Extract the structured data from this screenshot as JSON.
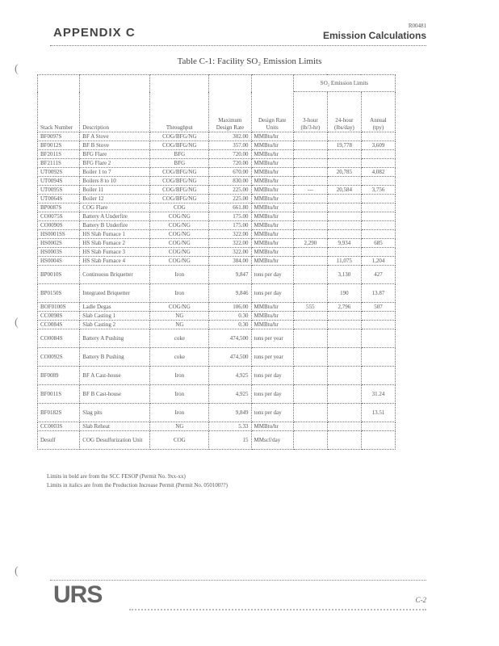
{
  "header": {
    "appendix": "APPENDIX C",
    "doc_id": "R00481",
    "section": "Emission Calculations"
  },
  "title": "Table C-1: Facility SO₂ Emission Limits",
  "table": {
    "headers": {
      "stack": "Stack Number",
      "description": "Description",
      "throughput": "Throughput",
      "max_rate": "Maximum Design Rate",
      "units": "Design Rate Units",
      "limits_group": "SO₂ Emission Limits",
      "h3": "3-hour (lb/3-hr)",
      "h24": "24-hour (lbs/day)",
      "annual": "Annual (tpy)"
    },
    "rows": [
      {
        "stack": "BF0097S",
        "desc": "BF A Stove",
        "fuel": "COG/BFG/NG",
        "rate": "302.00",
        "units": "MMBtu/hr",
        "h3": "",
        "h24": "",
        "annual": ""
      },
      {
        "stack": "BF0012S",
        "desc": "BF B Stove",
        "fuel": "COG/BFG/NG",
        "rate": "357.00",
        "units": "MMBtu/hr",
        "h3": "",
        "h24": "19,778",
        "annual": "3,609"
      },
      {
        "stack": "BF2011S",
        "desc": "BFG Flare",
        "fuel": "BFG",
        "rate": "720.00",
        "units": "MMBtu/hr",
        "h3": "",
        "h24": "",
        "annual": ""
      },
      {
        "stack": "BF2111S",
        "desc": "BFG Flare 2",
        "fuel": "BFG",
        "rate": "720.00",
        "units": "MMBtu/hr",
        "h3": "",
        "h24": "",
        "annual": ""
      },
      {
        "stack": "UT0092S",
        "desc": "Boiler 1 to 7",
        "fuel": "COG/BFG/NG",
        "rate": "670.00",
        "units": "MMBtu/hr",
        "h3": "",
        "h24": "20,785",
        "annual": "4,082"
      },
      {
        "stack": "UT0094S",
        "desc": "Boilers 8 to 10",
        "fuel": "COG/BFG/NG",
        "rate": "830.00",
        "units": "MMBtu/hr",
        "h3": "",
        "h24": "",
        "annual": ""
      },
      {
        "stack": "UT0095S",
        "desc": "Boiler 11",
        "fuel": "COG/BFG/NG",
        "rate": "225.00",
        "units": "MMBtu/hr",
        "h3": "---",
        "h24": "20,584",
        "annual": "3,756"
      },
      {
        "stack": "UT0064S",
        "desc": "Boiler 12",
        "fuel": "COG/BFG/NG",
        "rate": "225.00",
        "units": "MMBtu/hr",
        "h3": "",
        "h24": "",
        "annual": ""
      },
      {
        "stack": "BP0087S",
        "desc": "COG Flare",
        "fuel": "COG",
        "rate": "661.80",
        "units": "MMBtu/hr",
        "h3": "",
        "h24": "",
        "annual": ""
      },
      {
        "stack": "CO0075S",
        "desc": "Battery A Underfire",
        "fuel": "COG/NG",
        "rate": "175.00",
        "units": "MMBtu/hr",
        "h3": "",
        "h24": "",
        "annual": ""
      },
      {
        "stack": "CO0090S",
        "desc": "Battery B Underfire",
        "fuel": "COG/NG",
        "rate": "175.00",
        "units": "MMBtu/hr",
        "h3": "",
        "h24": "",
        "annual": ""
      },
      {
        "stack": "HS0001SS",
        "desc": "HS Slab Furnace 1",
        "fuel": "COG/NG",
        "rate": "322.00",
        "units": "MMBtu/hr",
        "h3": "",
        "h24": "",
        "annual": ""
      },
      {
        "stack": "HS0002S",
        "desc": "HS Slab Furnace 2",
        "fuel": "COG/NG",
        "rate": "322.00",
        "units": "MMBtu/hr",
        "h3": "2,290",
        "h24": "9,934",
        "annual": "685"
      },
      {
        "stack": "HS0003S",
        "desc": "HS Slab Furnace 3",
        "fuel": "COG/NG",
        "rate": "322.00",
        "units": "MMBtu/hr",
        "h3": "",
        "h24": "",
        "annual": ""
      },
      {
        "stack": "HS0004S",
        "desc": "HS Slab Furnace 4",
        "fuel": "COG/NG",
        "rate": "384.00",
        "units": "MMBtu/hr",
        "h3": "",
        "h24": "11,075",
        "annual": "1,204"
      },
      {
        "stack": "BP0010S",
        "desc": "Continuous Briquetter",
        "fuel": "Iron",
        "rate": "9,847",
        "units": "tons per day",
        "h3": "",
        "h24": "3,130",
        "annual": "427",
        "tall": true
      },
      {
        "stack": "BP0150S",
        "desc": "Integrated Briquetter",
        "fuel": "Iron",
        "rate": "9,846",
        "units": "tons per day",
        "h3": "",
        "h24": "190",
        "annual": "13.87",
        "tall": true
      },
      {
        "stack": "BOF0100S",
        "desc": "Ladle Degas",
        "fuel": "COG/NG",
        "rate": "106.00",
        "units": "MMBtu/hr",
        "h3": "555",
        "h24": "2,796",
        "annual": "507"
      },
      {
        "stack": "CC0098S",
        "desc": "Slab Casting 1",
        "fuel": "NG",
        "rate": "0.30",
        "units": "MMBtu/hr",
        "h3": "",
        "h24": "",
        "annual": ""
      },
      {
        "stack": "CC0084S",
        "desc": "Slab Casting 2",
        "fuel": "NG",
        "rate": "0.30",
        "units": "MMBtu/hr",
        "h3": "",
        "h24": "",
        "annual": ""
      },
      {
        "stack": "CO0084S",
        "desc": "Battery A Pushing",
        "fuel": "coke",
        "rate": "474,500",
        "units": "tons per year",
        "h3": "",
        "h24": "",
        "annual": "",
        "tall": true
      },
      {
        "stack": "CO0092S",
        "desc": "Battery B Pushing",
        "fuel": "coke",
        "rate": "474,500",
        "units": "tons per year",
        "h3": "",
        "h24": "",
        "annual": "",
        "tall": true
      },
      {
        "stack": "BF0089",
        "desc": "BF A Cast-house",
        "fuel": "Iron",
        "rate": "4,925",
        "units": "tons per day",
        "h3": "",
        "h24": "",
        "annual": "",
        "tall": true
      },
      {
        "stack": "BF0011S",
        "desc": "BF B Cast-house",
        "fuel": "Iron",
        "rate": "4,925",
        "units": "tons per day",
        "h3": "",
        "h24": "",
        "annual": "31.24",
        "tall": true
      },
      {
        "stack": "BF0182S",
        "desc": "Slag pits",
        "fuel": "Iron",
        "rate": "9,849",
        "units": "tons per day",
        "h3": "",
        "h24": "",
        "annual": "13.51",
        "tall": true
      },
      {
        "stack": "CC0003S",
        "desc": "Slab Reheat",
        "fuel": "NG",
        "rate": "5.33",
        "units": "MMBtu/hr",
        "h3": "",
        "h24": "",
        "annual": ""
      },
      {
        "stack": "Desulf",
        "desc": "COG Desulfurization Unit",
        "fuel": "COG",
        "rate": "15",
        "units": "MMscf/day",
        "h3": "",
        "h24": "",
        "annual": "",
        "tall": true
      }
    ]
  },
  "notes": [
    "Limits in bold are from the SCC FESOP (Permit No. 9xx-xx)",
    "Limits in italics are from the Production Increase Permit (Permit No. 050100??)"
  ],
  "footer": {
    "logo": "URS",
    "page": "C-2"
  }
}
